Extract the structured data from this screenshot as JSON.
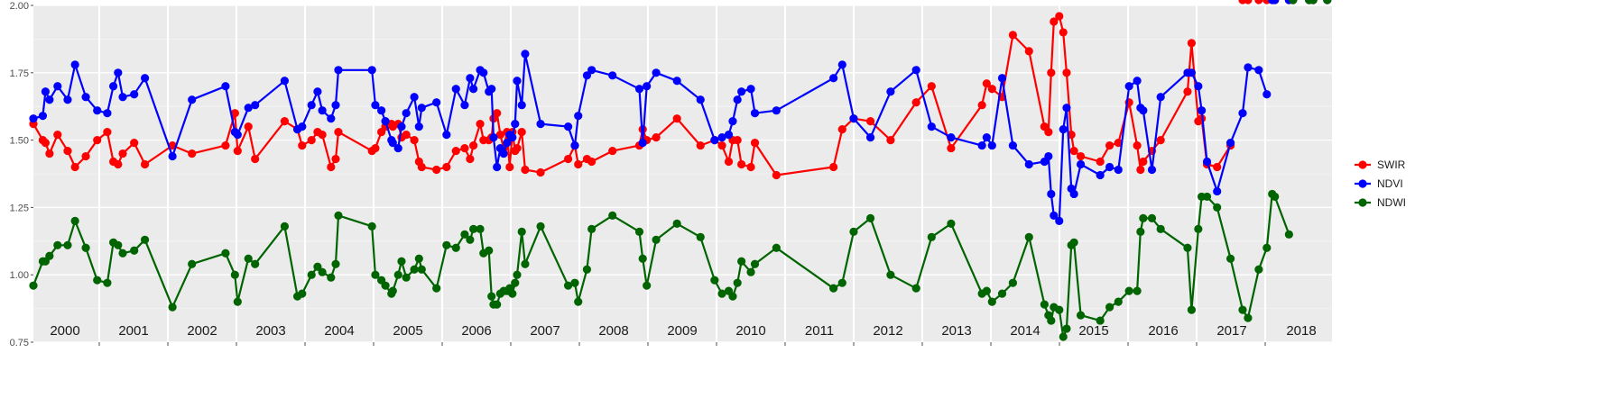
{
  "chart_data": {
    "type": "line",
    "title": "",
    "xlabel": "",
    "ylabel": "",
    "xlim": [
      2000.0,
      2018.46
    ],
    "ylim": [
      0.75,
      2.0
    ],
    "yticks": [
      "0.75",
      "1.00",
      "1.25",
      "1.50",
      "1.75",
      "2.00"
    ],
    "year_labels": [
      "2000",
      "2001",
      "2002",
      "2003",
      "2004",
      "2005",
      "2006",
      "2007",
      "2008",
      "2009",
      "2010",
      "2011",
      "2012",
      "2013",
      "2014",
      "2015",
      "2016",
      "2017",
      "2018"
    ],
    "grid": true,
    "background": "#ebebeb",
    "legend_position": "right",
    "series": [
      {
        "name": "SWIR",
        "color": "#ff0000",
        "x": [
          2000.0,
          2000.14,
          2000.18,
          2000.24,
          2000.36,
          2000.51,
          2000.62,
          2000.78,
          2000.95,
          2001.1,
          2001.19,
          2001.26,
          2001.33,
          2001.5,
          2001.66,
          2002.07,
          2002.36,
          2002.86,
          2003.0,
          2003.04,
          2003.2,
          2003.3,
          2003.74,
          2003.93,
          2004.0,
          2004.14,
          2004.23,
          2004.3,
          2004.43,
          2004.5,
          2004.54,
          2005.04,
          2005.09,
          2005.18,
          2005.24,
          2005.33,
          2005.35,
          2005.43,
          2005.48,
          2005.55,
          2005.67,
          2005.74,
          2005.78,
          2006.0,
          2006.15,
          2006.29,
          2006.42,
          2006.5,
          2006.55,
          2006.65,
          2006.7,
          2006.78,
          2006.82,
          2006.85,
          2006.9,
          2006.95,
          2007.0,
          2007.05,
          2007.09,
          2007.13,
          2007.17,
          2007.2,
          2007.27,
          2007.32,
          2007.55,
          2007.96,
          2008.06,
          2008.11,
          2008.24,
          2008.31,
          2008.62,
          2009.02,
          2009.07,
          2009.13,
          2009.27,
          2009.58,
          2009.93,
          2010.14,
          2010.25,
          2010.35,
          2010.41,
          2010.48,
          2010.54,
          2010.68,
          2010.74,
          2011.06,
          2011.91,
          2012.04,
          2012.21,
          2012.46,
          2012.76,
          2013.14,
          2013.37,
          2013.66,
          2014.12,
          2014.19,
          2014.27,
          2014.42,
          2014.58,
          2014.82,
          2015.05,
          2015.11,
          2015.15,
          2015.19,
          2015.27,
          2015.33,
          2015.38,
          2015.45,
          2015.49,
          2015.59,
          2015.88,
          2016.02,
          2016.15,
          2016.31,
          2016.43,
          2016.48,
          2016.52,
          2016.65,
          2016.78,
          2017.18,
          2017.24,
          2017.34,
          2017.39,
          2017.47,
          2017.62,
          2017.82,
          2018.0,
          2018.08,
          2018.24,
          2018.36,
          2018.44,
          2018.48,
          2018.69,
          2018.75,
          2018.99,
          2019.05,
          2019.26
        ]
      },
      {
        "name": "NDVI",
        "color": "#0000ff",
        "x": [
          2000.0,
          2000.14,
          2000.18,
          2000.24,
          2000.36,
          2000.51,
          2000.62,
          2000.78,
          2000.95,
          2001.1,
          2001.19,
          2001.26,
          2001.33,
          2001.5,
          2001.66,
          2002.07,
          2002.36,
          2002.86,
          2003.0,
          2003.04,
          2003.2,
          2003.3,
          2003.74,
          2003.93,
          2004.0,
          2004.14,
          2004.23,
          2004.3,
          2004.43,
          2004.5,
          2004.54,
          2005.04,
          2005.09,
          2005.18,
          2005.24,
          2005.33,
          2005.35,
          2005.43,
          2005.48,
          2005.55,
          2005.67,
          2005.74,
          2005.78,
          2006.0,
          2006.15,
          2006.29,
          2006.42,
          2006.5,
          2006.55,
          2006.65,
          2006.7,
          2006.78,
          2006.82,
          2006.85,
          2006.9,
          2006.95,
          2007.0,
          2007.05,
          2007.09,
          2007.13,
          2007.17,
          2007.2,
          2007.27,
          2007.32,
          2007.55,
          2007.96,
          2008.06,
          2008.11,
          2008.24,
          2008.31,
          2008.62,
          2009.02,
          2009.07,
          2009.13,
          2009.27,
          2009.58,
          2009.93,
          2010.14,
          2010.25,
          2010.35,
          2010.41,
          2010.48,
          2010.54,
          2010.68,
          2010.74,
          2011.06,
          2011.91,
          2012.04,
          2012.21,
          2012.46,
          2012.76,
          2013.14,
          2013.37,
          2013.66,
          2014.12,
          2014.19,
          2014.27,
          2014.42,
          2014.58,
          2014.82,
          2015.05,
          2015.11,
          2015.15,
          2015.19,
          2015.27,
          2015.33,
          2015.38,
          2015.45,
          2015.49,
          2015.59,
          2015.88,
          2016.02,
          2016.15,
          2016.31,
          2016.43,
          2016.48,
          2016.52,
          2016.65,
          2016.78,
          2017.18,
          2017.24,
          2017.34,
          2017.39,
          2017.47,
          2017.62,
          2017.82,
          2018.0,
          2018.08,
          2018.24,
          2018.36,
          2018.44,
          2018.48,
          2018.69,
          2018.75,
          2018.99,
          2019.05,
          2019.26
        ]
      },
      {
        "name": "NDWI",
        "color": "#006400",
        "x": [
          2000.0,
          2000.14,
          2000.18,
          2000.24,
          2000.36,
          2000.51,
          2000.62,
          2000.78,
          2000.95,
          2001.1,
          2001.19,
          2001.26,
          2001.33,
          2001.5,
          2001.66,
          2002.07,
          2002.36,
          2002.86,
          2003.0,
          2003.04,
          2003.2,
          2003.3,
          2003.74,
          2003.93,
          2004.0,
          2004.14,
          2004.23,
          2004.3,
          2004.43,
          2004.5,
          2004.54,
          2005.04,
          2005.09,
          2005.18,
          2005.24,
          2005.33,
          2005.35,
          2005.43,
          2005.48,
          2005.55,
          2005.67,
          2005.74,
          2005.78,
          2006.0,
          2006.15,
          2006.29,
          2006.42,
          2006.5,
          2006.55,
          2006.65,
          2006.7,
          2006.78,
          2006.82,
          2006.85,
          2006.9,
          2006.95,
          2007.0,
          2007.05,
          2007.09,
          2007.13,
          2007.17,
          2007.2,
          2007.27,
          2007.32,
          2007.55,
          2007.96,
          2008.06,
          2008.11,
          2008.24,
          2008.31,
          2008.62,
          2009.02,
          2009.07,
          2009.13,
          2009.27,
          2009.58,
          2009.93,
          2010.14,
          2010.25,
          2010.35,
          2010.41,
          2010.48,
          2010.54,
          2010.68,
          2010.74,
          2011.06,
          2011.91,
          2012.04,
          2012.21,
          2012.46,
          2012.76,
          2013.14,
          2013.37,
          2013.66,
          2014.12,
          2014.19,
          2014.27,
          2014.42,
          2014.58,
          2014.82,
          2015.05,
          2015.11,
          2015.15,
          2015.19,
          2015.27,
          2015.33,
          2015.38,
          2015.45,
          2015.49,
          2015.59,
          2015.88,
          2016.02,
          2016.15,
          2016.31,
          2016.43,
          2016.48,
          2016.52,
          2016.65,
          2016.78,
          2017.18,
          2017.24,
          2017.34,
          2017.39,
          2017.47,
          2017.62,
          2017.82,
          2018.0,
          2018.08,
          2018.24,
          2018.36,
          2018.44,
          2018.48,
          2018.69,
          2018.75,
          2018.99,
          2019.05,
          2019.26
        ]
      }
    ],
    "values_key": "y"
  }
}
